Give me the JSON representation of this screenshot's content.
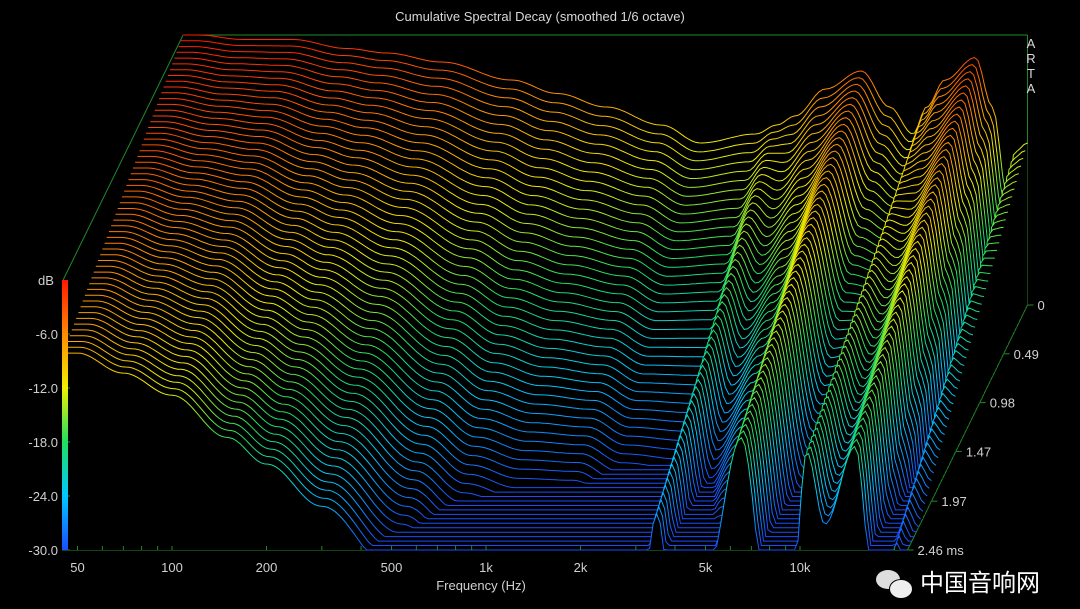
{
  "chart_data": {
    "type": "waterfall",
    "title": "Cumulative Spectral Decay (smoothed 1/6 octave)",
    "brand": "ARTA",
    "xlabel": "Frequency (Hz)",
    "zlabel": "dB",
    "time_unit": "ms",
    "x_scale": "log",
    "xlim": [
      45,
      22000
    ],
    "zlim": [
      -30,
      0
    ],
    "time_range": [
      0,
      2.46
    ],
    "slices": 56,
    "x_ticks": [
      {
        "value": 50,
        "label": "50"
      },
      {
        "value": 100,
        "label": "100"
      },
      {
        "value": 200,
        "label": "200"
      },
      {
        "value": 500,
        "label": "500"
      },
      {
        "value": 1000,
        "label": "1k"
      },
      {
        "value": 2000,
        "label": "2k"
      },
      {
        "value": 5000,
        "label": "5k"
      },
      {
        "value": 10000,
        "label": "10k"
      }
    ],
    "db_ticks": [
      {
        "value": -6,
        "label": "-6.0"
      },
      {
        "value": -12,
        "label": "-12.0"
      },
      {
        "value": -18,
        "label": "-18.0"
      },
      {
        "value": -24,
        "label": "-24.0"
      },
      {
        "value": -30,
        "label": "-30.0"
      }
    ],
    "time_ticks": [
      {
        "value": 0,
        "label": "0"
      },
      {
        "value": 0.49,
        "label": "0.49"
      },
      {
        "value": 0.98,
        "label": "0.98"
      },
      {
        "value": 1.47,
        "label": "1.47"
      },
      {
        "value": 1.97,
        "label": "1.97"
      },
      {
        "value": 2.46,
        "label": "2.46 ms"
      }
    ],
    "response": {
      "freq_hz": [
        45,
        50,
        70,
        100,
        150,
        200,
        300,
        500,
        700,
        1000,
        1500,
        2000,
        3000,
        3500,
        4000,
        5000,
        6500,
        8000,
        9500,
        10500,
        12000,
        15000,
        17000,
        19000,
        20000,
        22000
      ],
      "initial_db": [
        0,
        0,
        -0.5,
        -0.5,
        -1.5,
        -2,
        -3,
        -5,
        -6.5,
        -8,
        -10,
        -12,
        -11,
        -10,
        -9,
        -6,
        -4,
        -8,
        -11,
        -8,
        -5,
        -2.5,
        -8,
        -18,
        -13,
        -12
      ],
      "decay_db_per_ms": [
        3.3,
        3.3,
        4,
        5,
        6.5,
        7.5,
        9,
        11,
        12,
        12,
        11,
        11,
        12,
        6.5,
        12,
        11,
        5.5,
        12,
        9,
        4.5,
        9,
        6.5,
        10,
        12,
        6.5,
        8
      ]
    },
    "colormap": [
      {
        "db": -30,
        "color": "#1a4dff"
      },
      {
        "db": -24,
        "color": "#00c8ff"
      },
      {
        "db": -18,
        "color": "#20e060"
      },
      {
        "db": -12,
        "color": "#f0f000"
      },
      {
        "db": -6,
        "color": "#ff8a00"
      },
      {
        "db": 0,
        "color": "#ff1a00"
      }
    ],
    "axis_color": "#1f8a2a"
  },
  "watermark": {
    "text": "中国音响网"
  }
}
